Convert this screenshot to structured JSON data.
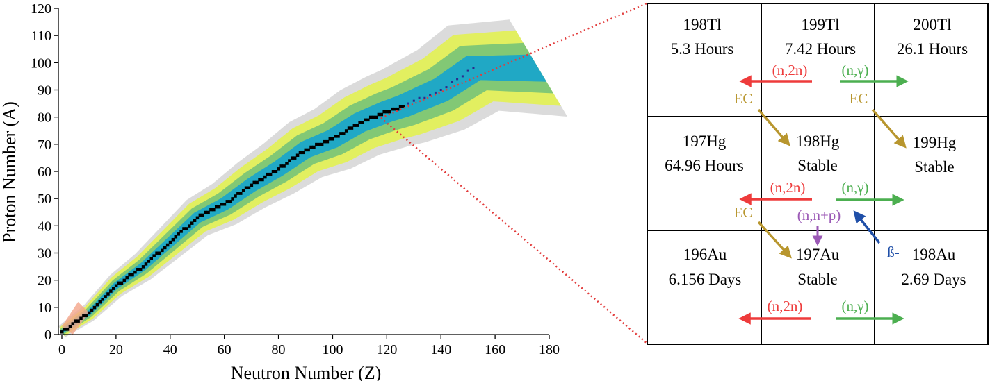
{
  "colors": {
    "stable": "#000000",
    "band_inner": "#1aa7c9",
    "band_mid": "#7cc576",
    "band_outer": "#e3f05a",
    "band_fringe": "#d9d9d9",
    "light_tail": "#f4a58a",
    "zoom_line": "#e23b3b",
    "red": "#ee3b3b",
    "green": "#4caf50",
    "gold": "#b8962e",
    "purple": "#9b59b6",
    "blue": "#1f4fa8"
  },
  "chart_data": {
    "type": "scatter",
    "xlabel": "Neutron Number (Z)",
    "ylabel": "Proton Number (A)",
    "xlim": [
      0,
      180
    ],
    "ylim": [
      0,
      120
    ],
    "xticks": [
      "0",
      "20",
      "40",
      "60",
      "80",
      "100",
      "120",
      "140",
      "160",
      "180"
    ],
    "yticks": [
      "0",
      "10",
      "20",
      "30",
      "40",
      "50",
      "60",
      "70",
      "80",
      "90",
      "100",
      "110",
      "120"
    ],
    "grid": false,
    "stability_line": {
      "x": [
        0,
        10,
        20,
        30,
        40,
        50,
        60,
        70,
        80,
        90,
        100,
        110,
        120,
        126,
        140,
        152
      ],
      "y": [
        1,
        8,
        18,
        25,
        34,
        43,
        48,
        55,
        61,
        68,
        72,
        78,
        82,
        84,
        90,
        98
      ]
    }
  },
  "grid_cells": [
    {
      "name": "cell-198tl",
      "nuclide": "198Tl",
      "halflife": "5.3 Hours"
    },
    {
      "name": "cell-199tl",
      "nuclide": "199Tl",
      "halflife": "7.42 Hours"
    },
    {
      "name": "cell-200tl",
      "nuclide": "200Tl",
      "halflife": "26.1 Hours"
    },
    {
      "name": "cell-197hg",
      "nuclide": "197Hg",
      "halflife": "64.96 Hours"
    },
    {
      "name": "cell-198hg",
      "nuclide": "198Hg",
      "halflife": "Stable"
    },
    {
      "name": "cell-199hg",
      "nuclide": "199Hg",
      "halflife": "Stable"
    },
    {
      "name": "cell-196au",
      "nuclide": "196Au",
      "halflife": "6.156 Days"
    },
    {
      "name": "cell-197au",
      "nuclide": "197Au",
      "halflife": "Stable"
    },
    {
      "name": "cell-198au",
      "nuclide": "198Au",
      "halflife": "2.69 Days"
    }
  ],
  "reactions": {
    "n2n": "(n,2n)",
    "ng": "(n,γ)",
    "ec": "EC",
    "nnp": "(n,n+p)",
    "beta": "ß-"
  }
}
